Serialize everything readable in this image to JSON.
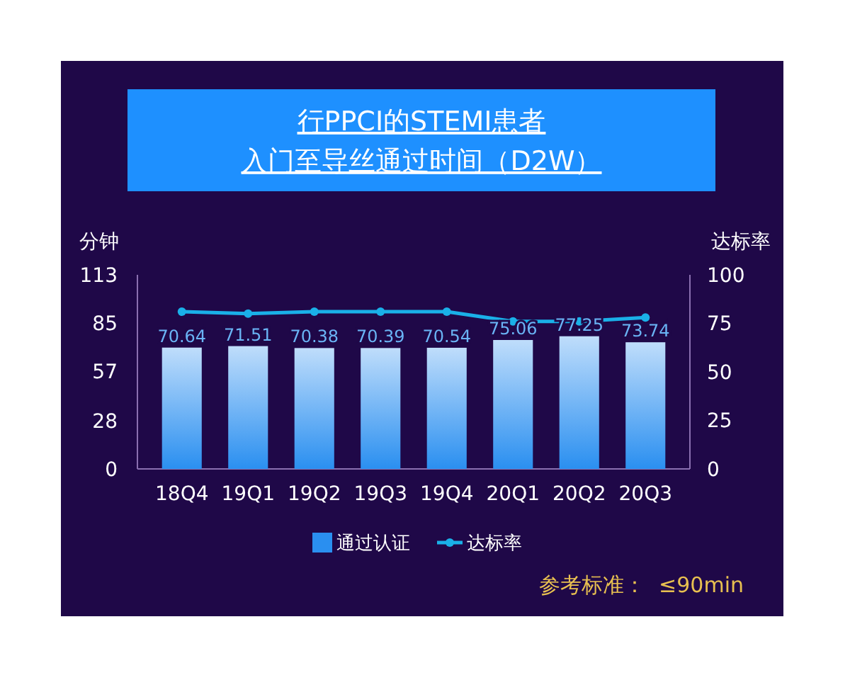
{
  "chart_data": {
    "type": "bar",
    "title": "行PPCI的STEMI患者入门至导丝通过时间（D2W）",
    "ylabel": "分钟",
    "y2label": "达标率",
    "categories": [
      "18Q4",
      "19Q1",
      "19Q2",
      "19Q3",
      "19Q4",
      "20Q1",
      "20Q2",
      "20Q3"
    ],
    "series": [
      {
        "name": "通过认证",
        "color": "#2a8ff0",
        "values": [
          70.64,
          71.51,
          70.38,
          70.39,
          70.54,
          75.06,
          77.25,
          73.74
        ],
        "value_labels": [
          "70.64",
          "71.51",
          "70.38",
          "70.39",
          "70.54",
          "75.06",
          "77.25",
          "73.74"
        ]
      },
      {
        "name": "达标率",
        "type": "line",
        "axis": "y2",
        "color": "#1ab0e8",
        "values": [
          81,
          80,
          81,
          81,
          81,
          76,
          76,
          78
        ]
      }
    ],
    "ylim": [
      0,
      113
    ],
    "yticks": [
      0,
      28,
      57,
      85,
      113
    ],
    "y2lim": [
      0,
      100
    ],
    "y2ticks": [
      0,
      25,
      50,
      75,
      100
    ],
    "legend": "bottom",
    "marker": "circle",
    "annotations": [
      "参考标准：  ≤90min"
    ]
  }
}
